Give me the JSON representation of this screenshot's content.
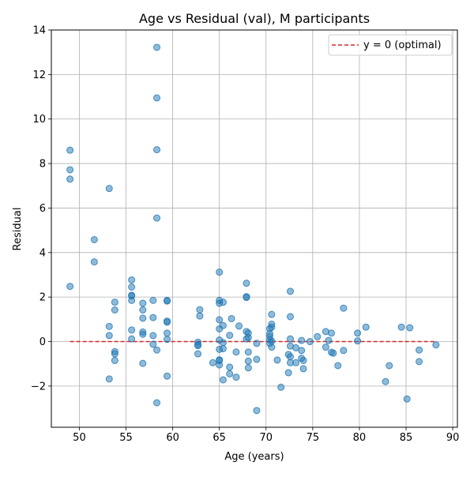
{
  "chart_data": {
    "type": "scatter",
    "title": "Age vs Residual (val), M participants",
    "xlabel": "Age (years)",
    "ylabel": "Residual",
    "xlim": [
      47,
      90.5
    ],
    "ylim": [
      -3.85,
      14.0
    ],
    "xticks": [
      50,
      55,
      60,
      65,
      70,
      75,
      80,
      85,
      90
    ],
    "yticks": [
      -2,
      0,
      2,
      4,
      6,
      8,
      10,
      12,
      14
    ],
    "grid": true,
    "legend": {
      "position": "upper right",
      "entries": [
        "y = 0 (optimal)"
      ]
    },
    "colors": {
      "points": "#1f77b4",
      "reference_line": "#d62728"
    },
    "reference_line": {
      "label": "y = 0 (optimal)",
      "y": 0,
      "x_range": [
        49,
        88.2
      ],
      "style": "dashed"
    },
    "points": [
      [
        49.0,
        8.6
      ],
      [
        49.0,
        7.72
      ],
      [
        49.0,
        7.3
      ],
      [
        49.0,
        2.48
      ],
      [
        51.6,
        4.58
      ],
      [
        51.6,
        3.58
      ],
      [
        53.2,
        6.88
      ],
      [
        53.2,
        0.68
      ],
      [
        53.2,
        0.27
      ],
      [
        53.2,
        -1.68
      ],
      [
        53.8,
        1.77
      ],
      [
        53.8,
        1.42
      ],
      [
        53.8,
        -0.45
      ],
      [
        53.8,
        -0.55
      ],
      [
        53.8,
        -0.85
      ],
      [
        55.6,
        2.77
      ],
      [
        55.6,
        2.45
      ],
      [
        55.6,
        2.08
      ],
      [
        55.6,
        2.05
      ],
      [
        55.6,
        1.85
      ],
      [
        55.6,
        0.52
      ],
      [
        55.6,
        0.12
      ],
      [
        56.8,
        1.72
      ],
      [
        56.8,
        1.42
      ],
      [
        56.8,
        1.05
      ],
      [
        56.8,
        0.43
      ],
      [
        56.8,
        0.33
      ],
      [
        56.8,
        -0.98
      ],
      [
        57.9,
        1.85
      ],
      [
        57.9,
        1.08
      ],
      [
        57.9,
        0.27
      ],
      [
        57.9,
        -0.12
      ],
      [
        58.3,
        13.22
      ],
      [
        58.3,
        10.95
      ],
      [
        58.3,
        8.62
      ],
      [
        58.3,
        5.55
      ],
      [
        58.3,
        -0.38
      ],
      [
        58.3,
        -2.75
      ],
      [
        59.4,
        1.85
      ],
      [
        59.4,
        1.82
      ],
      [
        59.4,
        0.92
      ],
      [
        59.4,
        0.87
      ],
      [
        59.4,
        0.38
      ],
      [
        59.4,
        0.1
      ],
      [
        59.4,
        -1.55
      ],
      [
        62.7,
        -0.03
      ],
      [
        62.7,
        -0.15
      ],
      [
        62.7,
        -0.18
      ],
      [
        62.7,
        -0.55
      ],
      [
        62.9,
        1.43
      ],
      [
        62.9,
        1.15
      ],
      [
        64.3,
        -0.95
      ],
      [
        65.0,
        3.12
      ],
      [
        65.0,
        1.85
      ],
      [
        65.0,
        1.72
      ],
      [
        65.0,
        0.98
      ],
      [
        65.0,
        0.57
      ],
      [
        65.0,
        0.07
      ],
      [
        65.0,
        -0.35
      ],
      [
        65.0,
        -0.82
      ],
      [
        65.0,
        -0.85
      ],
      [
        65.0,
        -1.05
      ],
      [
        65.4,
        1.77
      ],
      [
        65.4,
        0.72
      ],
      [
        65.4,
        -0.05
      ],
      [
        65.4,
        -0.32
      ],
      [
        65.4,
        -1.72
      ],
      [
        66.1,
        0.28
      ],
      [
        66.1,
        -1.15
      ],
      [
        66.1,
        -1.45
      ],
      [
        66.3,
        1.03
      ],
      [
        66.8,
        -0.47
      ],
      [
        66.8,
        -1.6
      ],
      [
        67.1,
        0.7
      ],
      [
        67.9,
        2.62
      ],
      [
        67.9,
        2.02
      ],
      [
        67.9,
        1.98
      ],
      [
        67.9,
        0.45
      ],
      [
        67.9,
        0.12
      ],
      [
        68.1,
        0.38
      ],
      [
        68.1,
        0.18
      ],
      [
        68.1,
        -0.47
      ],
      [
        68.1,
        -0.88
      ],
      [
        68.1,
        -1.18
      ],
      [
        69.0,
        -3.1
      ],
      [
        69.0,
        -0.08
      ],
      [
        69.0,
        -0.8
      ],
      [
        70.4,
        0.58
      ],
      [
        70.4,
        0.35
      ],
      [
        70.4,
        0.23
      ],
      [
        70.4,
        0.08
      ],
      [
        70.4,
        -0.08
      ],
      [
        70.6,
        1.22
      ],
      [
        70.6,
        0.78
      ],
      [
        70.6,
        0.65
      ],
      [
        70.6,
        0.02
      ],
      [
        70.6,
        -0.25
      ],
      [
        71.2,
        -0.83
      ],
      [
        71.6,
        -2.05
      ],
      [
        72.4,
        -0.58
      ],
      [
        72.4,
        -1.4
      ],
      [
        72.6,
        2.26
      ],
      [
        72.6,
        1.12
      ],
      [
        72.6,
        0.12
      ],
      [
        72.6,
        -0.2
      ],
      [
        72.6,
        -0.68
      ],
      [
        72.6,
        -0.95
      ],
      [
        73.2,
        -0.28
      ],
      [
        73.2,
        -0.95
      ],
      [
        73.8,
        0.05
      ],
      [
        73.8,
        -0.4
      ],
      [
        73.8,
        -0.75
      ],
      [
        74.0,
        -0.85
      ],
      [
        74.0,
        -1.22
      ],
      [
        74.7,
        0.0
      ],
      [
        75.5,
        0.22
      ],
      [
        76.4,
        0.45
      ],
      [
        76.4,
        -0.25
      ],
      [
        76.7,
        0.05
      ],
      [
        77.0,
        0.38
      ],
      [
        77.0,
        -0.48
      ],
      [
        77.2,
        -0.52
      ],
      [
        77.7,
        -1.08
      ],
      [
        78.3,
        1.5
      ],
      [
        78.3,
        -0.4
      ],
      [
        79.8,
        0.38
      ],
      [
        79.8,
        0.03
      ],
      [
        80.7,
        0.65
      ],
      [
        82.8,
        -1.8
      ],
      [
        83.2,
        -1.08
      ],
      [
        84.5,
        0.65
      ],
      [
        85.1,
        -2.58
      ],
      [
        85.4,
        0.62
      ],
      [
        86.4,
        -0.38
      ],
      [
        86.4,
        -0.9
      ],
      [
        88.2,
        -0.15
      ]
    ]
  }
}
